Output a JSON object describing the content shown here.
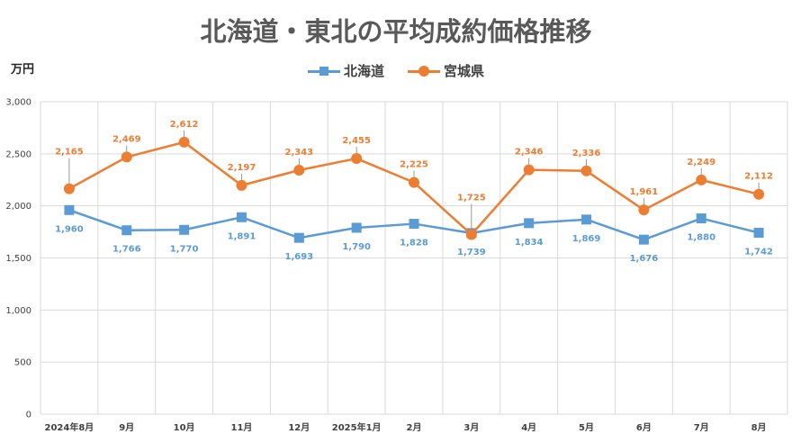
{
  "chart_data": {
    "type": "line",
    "title": "北海道・東北の平均成約価格推移",
    "ylabel": "万円",
    "ylim": [
      0,
      3000
    ],
    "yticks": [
      0,
      500,
      1000,
      1500,
      2000,
      2500,
      3000
    ],
    "ytick_labels": [
      "0",
      "500",
      "1,000",
      "1,500",
      "2,000",
      "2,500",
      "3,000"
    ],
    "grid": true,
    "legend_position": "top-center",
    "categories": [
      "2024年8月",
      "9月",
      "10月",
      "11月",
      "12月",
      "2025年1月",
      "2月",
      "3月",
      "4月",
      "5月",
      "6月",
      "7月",
      "8月"
    ],
    "series": [
      {
        "name": "北海道",
        "color": "#5b9bd5",
        "marker": "square",
        "label_position": "below",
        "values": [
          1960,
          1766,
          1770,
          1891,
          1693,
          1790,
          1828,
          1739,
          1834,
          1869,
          1676,
          1880,
          1742
        ],
        "labels": [
          "1,960",
          "1,766",
          "1,770",
          "1,891",
          "1,693",
          "1,790",
          "1,828",
          "1,739",
          "1,834",
          "1,869",
          "1,676",
          "1,880",
          "1,742"
        ]
      },
      {
        "name": "宮城県",
        "color": "#ed7d31",
        "marker": "circle",
        "label_position": "above",
        "values": [
          2165,
          2469,
          2612,
          2197,
          2343,
          2455,
          2225,
          1725,
          2346,
          2336,
          1961,
          2249,
          2112
        ],
        "labels": [
          "2,165",
          "2,469",
          "2,612",
          "2,197",
          "2,343",
          "2,455",
          "2,225",
          "1,725",
          "2,346",
          "2,336",
          "1,961",
          "2,249",
          "2,112"
        ]
      }
    ]
  }
}
